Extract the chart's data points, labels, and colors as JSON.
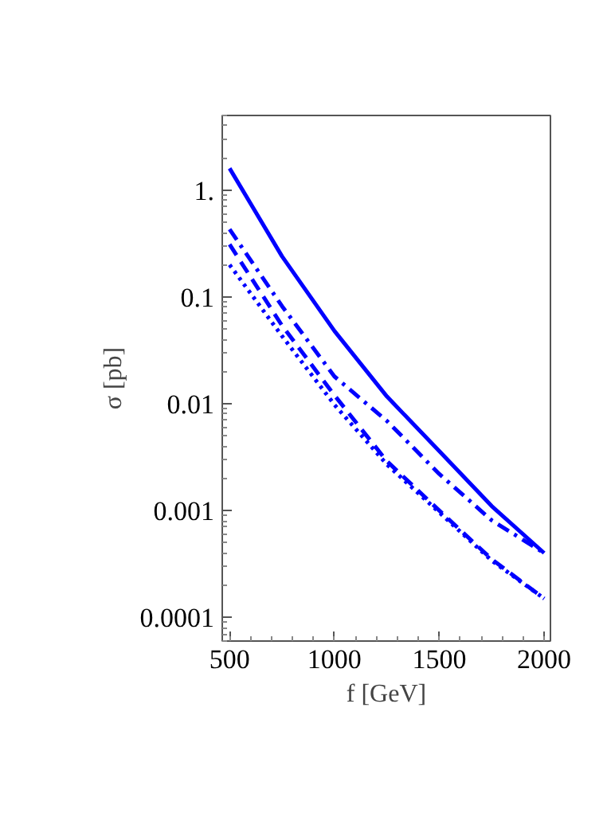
{
  "chart_data": {
    "type": "line",
    "xlabel": "f [GeV]",
    "ylabel": "σ [pb]",
    "log": "y",
    "x": [
      500,
      750,
      1000,
      1250,
      1500,
      1750,
      2000
    ],
    "xlim": [
      465,
      2030
    ],
    "ylim": [
      6e-05,
      5
    ],
    "xticks": [
      500,
      1000,
      1500,
      2000
    ],
    "yticks": [
      {
        "value": 0.0001,
        "label": "0.0001"
      },
      {
        "value": 0.001,
        "label": "0.001"
      },
      {
        "value": 0.01,
        "label": "0.01"
      },
      {
        "value": 0.1,
        "label": "0.1"
      },
      {
        "value": 1,
        "label": "1."
      }
    ],
    "grid": false,
    "marker": "none",
    "series": [
      {
        "color": "#0000ff",
        "line_style": "solid",
        "values": [
          1.6,
          0.24,
          0.048,
          0.0117,
          0.0036,
          0.0011,
          0.0004
        ]
      },
      {
        "color": "#0000ff",
        "line_style": "dashdot",
        "values": [
          0.43,
          0.082,
          0.018,
          0.0069,
          0.0022,
          0.00081,
          0.0004
        ]
      },
      {
        "color": "#0000ff",
        "line_style": "dashed",
        "values": [
          0.31,
          0.054,
          0.012,
          0.0029,
          0.001,
          0.00035,
          0.00015
        ]
      },
      {
        "color": "#0000ff",
        "line_style": "dotted",
        "values": [
          0.2,
          0.043,
          0.0098,
          0.0027,
          0.00096,
          0.00034,
          0.00015
        ]
      }
    ]
  }
}
